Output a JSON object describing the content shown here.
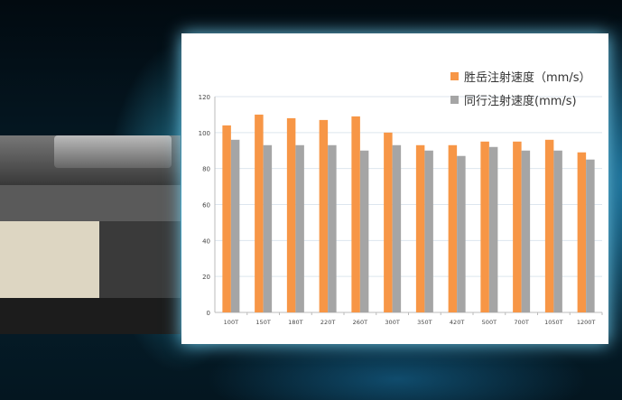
{
  "chart_data": {
    "type": "bar",
    "categories": [
      "100T",
      "150T",
      "180T",
      "220T",
      "260T",
      "300T",
      "350T",
      "420T",
      "500T",
      "700T",
      "1050T",
      "1200T"
    ],
    "series": [
      {
        "name": "胜岳注射速度（mm/s）",
        "color": "#f79646",
        "values": [
          104,
          110,
          108,
          107,
          109,
          100,
          93,
          93,
          95,
          95,
          96,
          89
        ]
      },
      {
        "name": "同行注射速度(mm/s)",
        "color": "#a5a5a5",
        "values": [
          96,
          93,
          93,
          93,
          90,
          93,
          90,
          87,
          92,
          90,
          90,
          85
        ]
      }
    ],
    "ylim": [
      0,
      120
    ],
    "yticks": [
      "0",
      "20",
      "40",
      "60",
      "80",
      "100",
      "120"
    ],
    "grid": true,
    "legend": "top-right",
    "title": "",
    "xlabel": "",
    "ylabel": ""
  }
}
